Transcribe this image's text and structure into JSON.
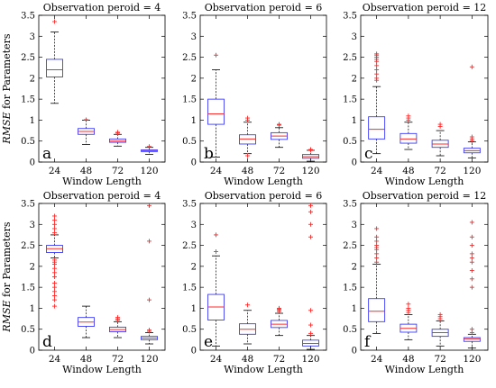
{
  "figure": {
    "ylabel": "RMSE for Parameters",
    "colors": {
      "box": "#3b3bff",
      "median": "#ff2a2a",
      "outlier": "#ff2a2a",
      "whisker": "#000000"
    }
  },
  "chart_data": [
    {
      "type": "box",
      "panel": "a",
      "title": "Observation peroid = 4",
      "xlabel": "Window Length",
      "ylabel": "RMSE for Parameters",
      "categories": [
        "24",
        "48",
        "72",
        "120"
      ],
      "ylim": [
        0,
        3.5
      ],
      "yticks": [
        "0",
        "0.5",
        "1",
        "1.5",
        "2",
        "2.5",
        "3",
        "3.5"
      ],
      "boxes": [
        {
          "whislo": 1.4,
          "q1": 2.03,
          "median": 2.2,
          "q3": 2.45,
          "whishi": 3.1,
          "fliers": [
            3.35
          ]
        },
        {
          "whislo": 0.42,
          "q1": 0.66,
          "median": 0.73,
          "q3": 0.8,
          "whishi": 1.0,
          "fliers": [
            1.01
          ]
        },
        {
          "whislo": 0.38,
          "q1": 0.47,
          "median": 0.5,
          "q3": 0.55,
          "whishi": 0.66,
          "fliers": [
            0.69,
            0.71
          ]
        },
        {
          "whislo": 0.18,
          "q1": 0.25,
          "median": 0.27,
          "q3": 0.29,
          "whishi": 0.35,
          "fliers": [
            0.37
          ]
        }
      ]
    },
    {
      "type": "box",
      "panel": "b",
      "title": "Observation peroid = 6",
      "xlabel": "Window Length",
      "ylabel": "",
      "categories": [
        "24",
        "48",
        "72",
        "120"
      ],
      "ylim": [
        0,
        3.5
      ],
      "yticks": [
        "0",
        "0.5",
        "1",
        "1.5",
        "2",
        "2.5",
        "3",
        "3.5"
      ],
      "boxes": [
        {
          "whislo": 0.12,
          "q1": 0.9,
          "median": 1.15,
          "q3": 1.5,
          "whishi": 2.2,
          "fliers": [
            2.55
          ]
        },
        {
          "whislo": 0.2,
          "q1": 0.43,
          "median": 0.55,
          "q3": 0.65,
          "whishi": 0.95,
          "fliers": [
            0.15,
            1.0,
            1.05
          ]
        },
        {
          "whislo": 0.35,
          "q1": 0.54,
          "median": 0.62,
          "q3": 0.7,
          "whishi": 0.82,
          "fliers": [
            0.88,
            0.9
          ]
        },
        {
          "whislo": 0.02,
          "q1": 0.09,
          "median": 0.13,
          "q3": 0.18,
          "whishi": 0.28,
          "fliers": [
            0.29,
            0.3
          ]
        }
      ]
    },
    {
      "type": "box",
      "panel": "c",
      "title": "Observation peroid = 12",
      "xlabel": "Window Length",
      "ylabel": "",
      "categories": [
        "24",
        "48",
        "72",
        "120"
      ],
      "ylim": [
        0,
        3.5
      ],
      "yticks": [
        "0",
        "0.5",
        "1",
        "1.5",
        "2",
        "2.5",
        "3",
        "3.5"
      ],
      "boxes": [
        {
          "whislo": 0.2,
          "q1": 0.55,
          "median": 0.78,
          "q3": 1.08,
          "whishi": 1.8,
          "fliers": [
            1.95,
            2.0,
            2.1,
            2.2,
            2.3,
            2.4,
            2.45,
            2.5,
            2.55,
            2.58
          ]
        },
        {
          "whislo": 0.3,
          "q1": 0.45,
          "median": 0.55,
          "q3": 0.68,
          "whishi": 0.95,
          "fliers": [
            1.0,
            1.05,
            1.1
          ]
        },
        {
          "whislo": 0.15,
          "q1": 0.35,
          "median": 0.43,
          "q3": 0.52,
          "whishi": 0.75,
          "fliers": [
            0.85,
            0.9
          ]
        },
        {
          "whislo": 0.1,
          "q1": 0.22,
          "median": 0.27,
          "q3": 0.33,
          "whishi": 0.48,
          "fliers": [
            0.5,
            0.55,
            0.6,
            2.27
          ]
        }
      ]
    },
    {
      "type": "box",
      "panel": "d",
      "title": "Observation peroid = 4",
      "xlabel": "Window Length",
      "ylabel": "RMSE for Parameters",
      "categories": [
        "24",
        "48",
        "72",
        "120"
      ],
      "ylim": [
        0,
        3.5
      ],
      "yticks": [
        "0",
        "0.5",
        "1",
        "1.5",
        "2",
        "2.5",
        "3",
        "3.5"
      ],
      "boxes": [
        {
          "whislo": 2.2,
          "q1": 2.33,
          "median": 2.42,
          "q3": 2.5,
          "whishi": 2.75,
          "fliers": [
            1.05,
            1.2,
            1.3,
            1.4,
            1.5,
            1.6,
            1.75,
            1.85,
            1.95,
            2.05,
            2.1,
            2.15,
            2.8,
            2.9,
            3.0,
            3.1,
            3.2
          ]
        },
        {
          "whislo": 0.3,
          "q1": 0.57,
          "median": 0.67,
          "q3": 0.78,
          "whishi": 1.05,
          "fliers": []
        },
        {
          "whislo": 0.3,
          "q1": 0.44,
          "median": 0.49,
          "q3": 0.55,
          "whishi": 0.68,
          "fliers": [
            0.72,
            0.75,
            0.78
          ]
        },
        {
          "whislo": 0.15,
          "q1": 0.25,
          "median": 0.29,
          "q3": 0.33,
          "whishi": 0.42,
          "fliers": [
            0.45,
            0.48,
            1.2,
            2.6,
            3.45
          ]
        }
      ]
    },
    {
      "type": "box",
      "panel": "e",
      "title": "Observation peroid = 6",
      "xlabel": "Window Length",
      "ylabel": "",
      "categories": [
        "24",
        "48",
        "72",
        "120"
      ],
      "ylim": [
        0,
        3.5
      ],
      "yticks": [
        "0",
        "0.5",
        "1",
        "1.5",
        "2",
        "2.5",
        "3",
        "3.5"
      ],
      "boxes": [
        {
          "whislo": 0.1,
          "q1": 0.72,
          "median": 1.03,
          "q3": 1.33,
          "whishi": 2.25,
          "fliers": [
            2.35,
            2.75
          ]
        },
        {
          "whislo": 0.15,
          "q1": 0.38,
          "median": 0.5,
          "q3": 0.63,
          "whishi": 0.95,
          "fliers": [
            1.08
          ]
        },
        {
          "whislo": 0.35,
          "q1": 0.54,
          "median": 0.62,
          "q3": 0.71,
          "whishi": 0.88,
          "fliers": [
            0.92,
            0.95,
            0.98,
            1.0
          ]
        },
        {
          "whislo": 0.02,
          "q1": 0.1,
          "median": 0.16,
          "q3": 0.24,
          "whishi": 0.35,
          "fliers": [
            0.4,
            0.6,
            0.95,
            2.7,
            3.0,
            3.3,
            3.45
          ]
        }
      ]
    },
    {
      "type": "box",
      "panel": "f",
      "title": "Observation peroid = 12",
      "xlabel": "Window Length",
      "ylabel": "",
      "categories": [
        "24",
        "48",
        "72",
        "120"
      ],
      "ylim": [
        0,
        3.5
      ],
      "yticks": [
        "0",
        "0.5",
        "1",
        "1.5",
        "2",
        "2.5",
        "3",
        "3.5"
      ],
      "boxes": [
        {
          "whislo": 0.4,
          "q1": 0.68,
          "median": 0.93,
          "q3": 1.23,
          "whishi": 2.05,
          "fliers": [
            2.1,
            2.2,
            2.3,
            2.4,
            2.45,
            2.5,
            2.6,
            2.7,
            2.9
          ]
        },
        {
          "whislo": 0.25,
          "q1": 0.43,
          "median": 0.52,
          "q3": 0.62,
          "whishi": 0.85,
          "fliers": [
            0.9,
            0.95,
            1.0,
            1.1
          ]
        },
        {
          "whislo": 0.1,
          "q1": 0.33,
          "median": 0.42,
          "q3": 0.5,
          "whishi": 0.7,
          "fliers": [
            0.75,
            0.8,
            0.85
          ]
        },
        {
          "whislo": 0.05,
          "q1": 0.21,
          "median": 0.27,
          "q3": 0.3,
          "whishi": 0.38,
          "fliers": [
            0.42,
            0.5,
            1.5,
            1.7,
            1.9,
            2.1,
            2.2,
            2.3,
            2.5,
            2.7,
            3.05
          ]
        }
      ]
    }
  ]
}
